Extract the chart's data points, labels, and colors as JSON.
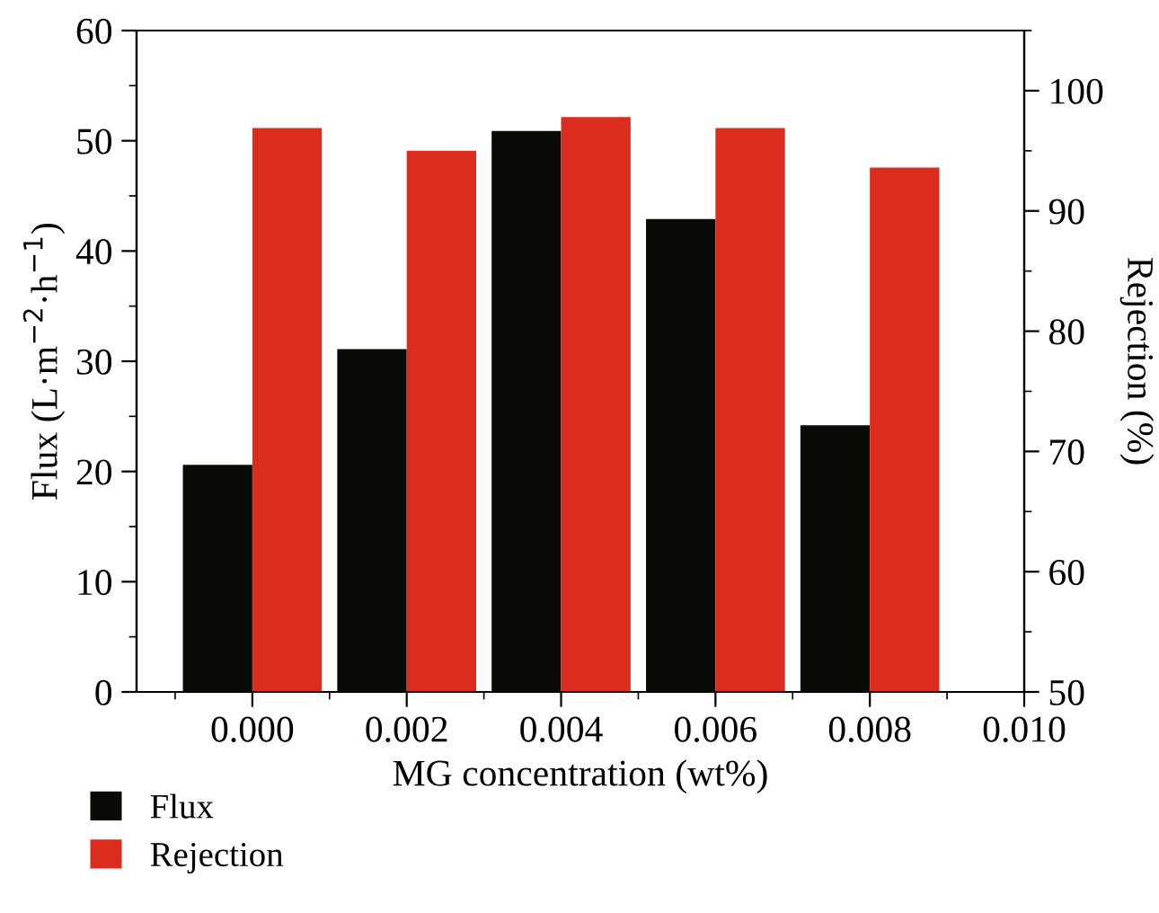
{
  "chart_data": {
    "type": "bar",
    "xlabel": "MG concentration (wt%)",
    "ylabel": "Flux (L·m$^{−2}$·h$^{−1}$)",
    "y2label": "Rejection (%)",
    "x": [
      0,
      0.002,
      0.004,
      0.006,
      0.008
    ],
    "series": [
      {
        "name": "Flux",
        "color": "#0a0a08",
        "values": [
          20.6,
          31.1,
          50.9,
          42.9,
          24.2
        ]
      },
      {
        "name": "Rejection",
        "color": "#dc2c1e",
        "values": [
          96.9,
          95.0,
          97.8,
          96.9,
          93.6
        ],
        "axis": "y2"
      }
    ],
    "xlim": [
      -0.0015,
      0.01
    ],
    "xticks": [
      {
        "value": 0,
        "label": "0.000"
      },
      {
        "value": 0.002,
        "label": "0.002"
      },
      {
        "value": 0.004,
        "label": "0.004"
      },
      {
        "value": 0.006,
        "label": "0.006"
      },
      {
        "value": 0.008,
        "label": "0.008"
      },
      {
        "value": 0.01,
        "label": "0.010"
      }
    ],
    "ylim": [
      0,
      60
    ],
    "yticks": [
      0,
      10,
      20,
      30,
      40,
      50,
      60
    ],
    "y2lim": [
      50,
      105
    ],
    "y2ticks": [
      50,
      60,
      70,
      80,
      90,
      100
    ],
    "legend": "bottom left",
    "grid": false
  }
}
